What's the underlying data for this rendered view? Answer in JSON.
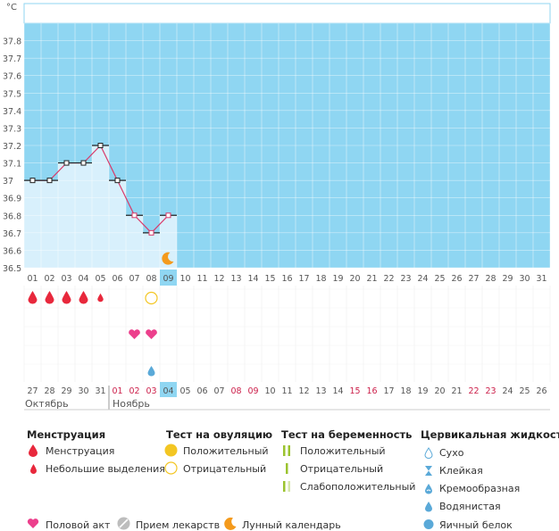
{
  "unit_label": "°C",
  "chart_data": {
    "type": "line",
    "ylim": [
      36.5,
      37.9
    ],
    "y_ticks": [
      "37.8",
      "37.7",
      "37.6",
      "37.5",
      "37.4",
      "37.3",
      "37.2",
      "37.1",
      "37",
      "36.9",
      "36.8",
      "36.7",
      "36.6",
      "36.5"
    ],
    "cycle_days": [
      "01",
      "02",
      "03",
      "04",
      "05",
      "06",
      "07",
      "08",
      "09",
      "10",
      "11",
      "12",
      "13",
      "14",
      "15",
      "16",
      "17",
      "18",
      "19",
      "20",
      "21",
      "22",
      "23",
      "24",
      "25",
      "26",
      "27",
      "28",
      "29",
      "30",
      "31"
    ],
    "temperatures": [
      37.0,
      37.0,
      37.1,
      37.1,
      37.2,
      37.0,
      36.8,
      36.7,
      36.8
    ],
    "current_day": "09",
    "grid": true
  },
  "markers": {
    "menstruation": [
      "heavy",
      "heavy",
      "heavy",
      "heavy",
      "light"
    ],
    "ovulation_test_negative_day": 8,
    "intercourse_days": [
      7,
      8
    ],
    "cervical_fluid": {
      "day": 8,
      "type": "watery"
    },
    "moon_day": 9
  },
  "calendar": {
    "dates": [
      "27",
      "28",
      "29",
      "30",
      "31",
      "01",
      "02",
      "03",
      "04",
      "05",
      "06",
      "07",
      "08",
      "09",
      "10",
      "11",
      "12",
      "13",
      "14",
      "15",
      "16",
      "17",
      "18",
      "19",
      "20",
      "21",
      "22",
      "23",
      "24",
      "25",
      "26"
    ],
    "highlighted_dates": [
      "01",
      "02",
      "03",
      "08",
      "09",
      "15",
      "16",
      "22",
      "23"
    ],
    "current_date": "04",
    "month_left": "Октябрь",
    "month_right": "Ноябрь"
  },
  "colors": {
    "header_blue": "#8fd6f2",
    "fill_blue": "#d8f0fc",
    "line_red": "#d93a6a",
    "menses_red": "#e8283c",
    "heart_pink": "#ec3f8c",
    "ovulation_yellow": "#f3c623",
    "moon_orange": "#f49a1c",
    "test_green": "#9bc32f",
    "date_highlight": "#cc1f4a"
  },
  "legend": {
    "menstruation": {
      "title": "Менструация",
      "items": [
        "Менструация",
        "Небольшие выделения"
      ]
    },
    "ovulation_test": {
      "title": "Тест на овуляцию",
      "items": [
        "Положительный",
        "Отрицательный"
      ]
    },
    "pregnancy_test": {
      "title": "Тест на беременность",
      "items": [
        "Положительный",
        "Отрицательный",
        "Слабоположительный"
      ]
    },
    "cervical_fluid": {
      "title": "Цервикальная жидкость",
      "items": [
        "Сухо",
        "Клейкая",
        "Кремообразная",
        "Водянистая",
        "Яичный белок"
      ]
    },
    "misc": [
      "Половой акт",
      "Прием лекарств",
      "Лунный календарь"
    ]
  }
}
